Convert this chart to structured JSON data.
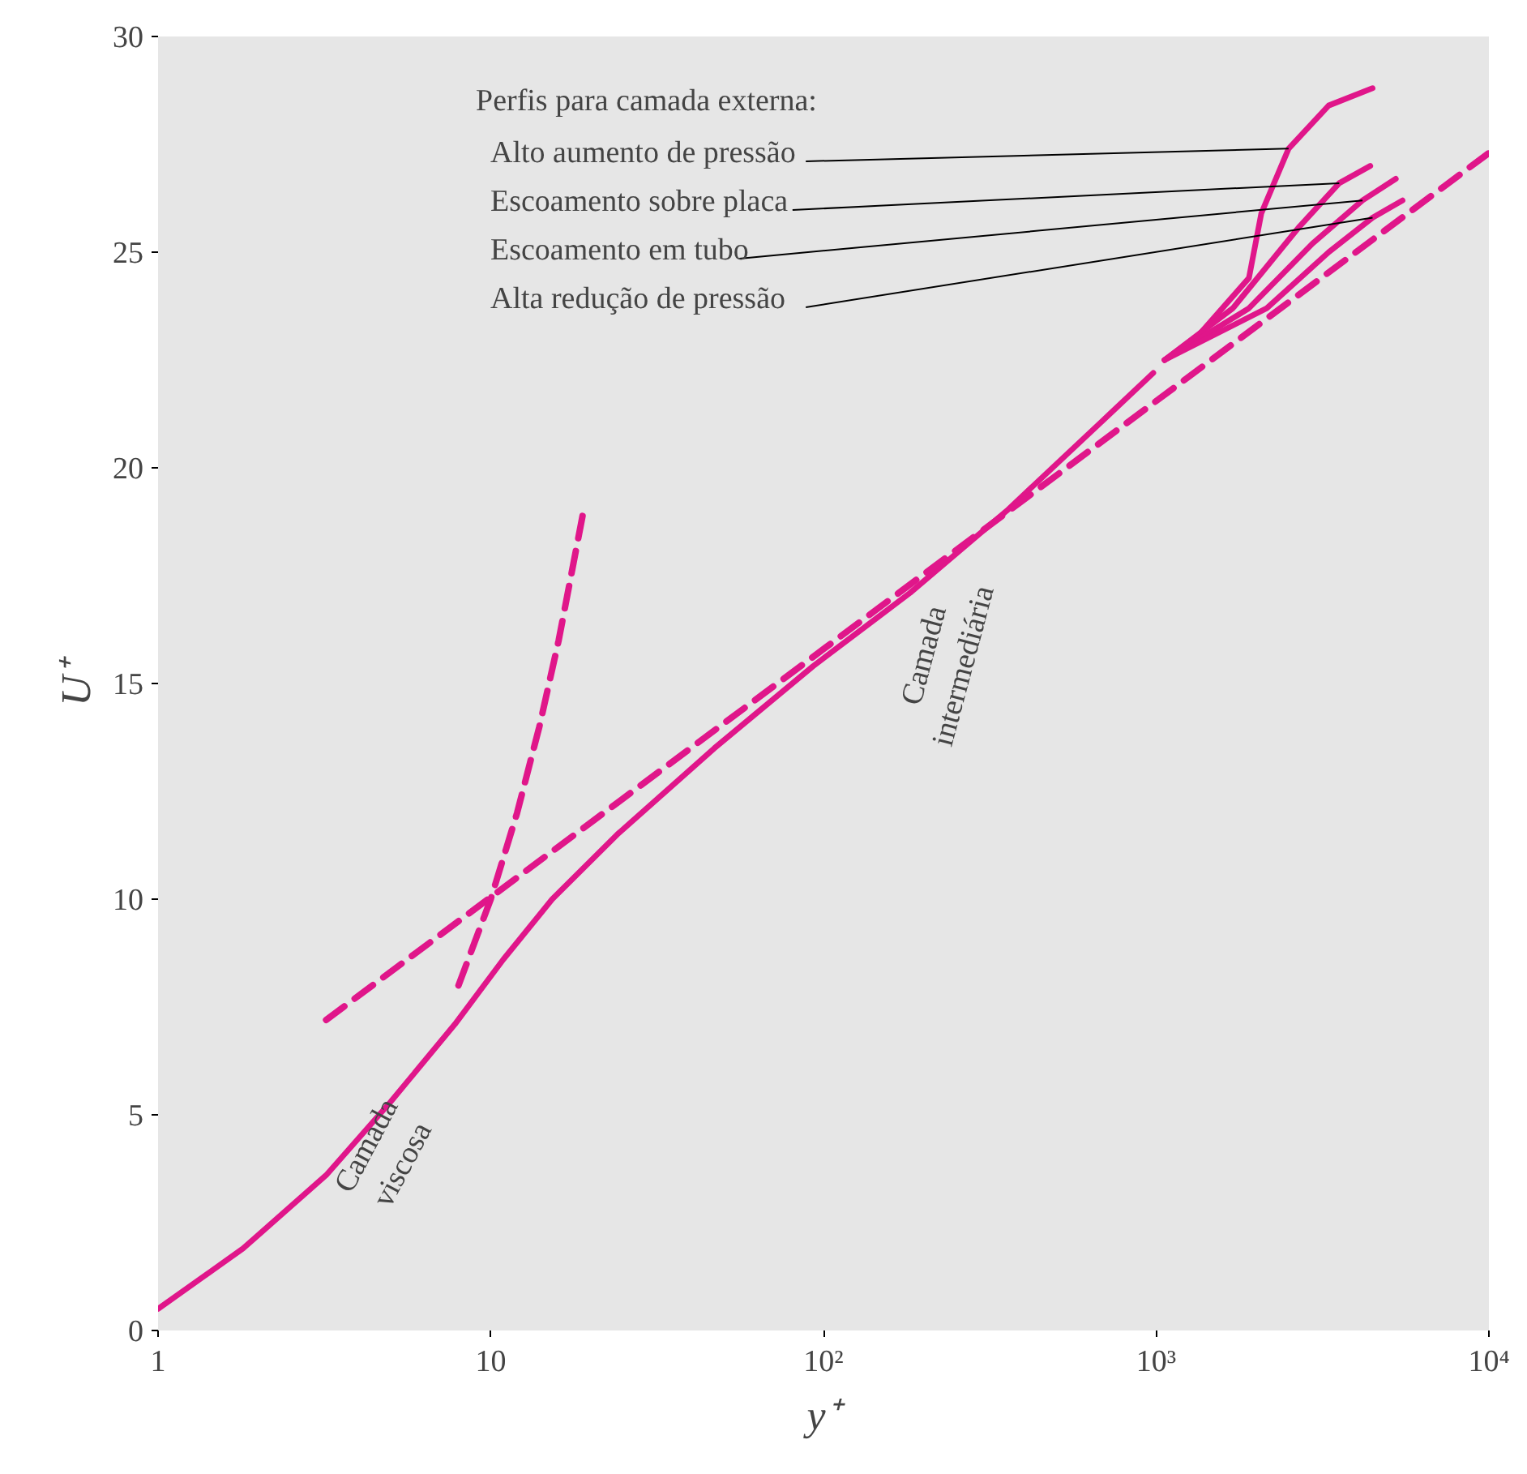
{
  "chart_data": {
    "type": "line",
    "xlabel": "y⁺",
    "ylabel": "U⁺",
    "log": "x",
    "marker": "none",
    "xlim": [
      1,
      10000
    ],
    "ylim": [
      0,
      30
    ],
    "xticks": [
      1,
      10,
      {
        "value": 100,
        "label": "10²"
      },
      {
        "value": 1000,
        "label": "10³"
      },
      {
        "value": 10000,
        "label": "10⁴"
      }
    ],
    "yticks": [
      0,
      5,
      10,
      15,
      20,
      25,
      30
    ],
    "annotations": [
      "Perfis para camada externa:",
      "Camada\nviscosa",
      "Camada\nintermediária"
    ],
    "series": [
      {
        "color": "#e0168a",
        "line_style": "solid",
        "x": [
          1,
          1.8,
          3.2,
          5,
          7.8,
          10.9,
          15.3,
          24,
          47,
          93,
          182,
          355,
          692,
          980
        ],
        "values": [
          0.5,
          1.9,
          3.6,
          5.3,
          7.1,
          8.6,
          10.0,
          11.5,
          13.5,
          15.4,
          17.1,
          19.0,
          21.1,
          22.2
        ]
      },
      {
        "name": "Alto aumento de pressão",
        "color": "#e0168a",
        "line_style": "solid",
        "x": [
          1060,
          1350,
          1900,
          2070,
          2500,
          3300,
          4470
        ],
        "values": [
          22.5,
          23.1,
          24.4,
          25.9,
          27.4,
          28.4,
          28.8
        ]
      },
      {
        "name": "Escoamento sobre placa",
        "color": "#e0168a",
        "line_style": "solid",
        "x": [
          1060,
          1700,
          2700,
          3550,
          4400
        ],
        "values": [
          22.5,
          23.7,
          25.6,
          26.6,
          27.0
        ]
      },
      {
        "name": "Escoamento em tubo",
        "color": "#e0168a",
        "line_style": "solid",
        "x": [
          1060,
          1900,
          2950,
          4170,
          5250
        ],
        "values": [
          22.5,
          23.7,
          25.2,
          26.2,
          26.7
        ]
      },
      {
        "name": "Alta redução de pressão",
        "color": "#e0168a",
        "line_style": "solid",
        "x": [
          1060,
          2150,
          3300,
          4470,
          5500
        ],
        "values": [
          22.5,
          23.7,
          25.0,
          25.8,
          26.2
        ]
      },
      {
        "color": "#e0168a",
        "line_style": "dashed",
        "x": [
          3.2,
          10000
        ],
        "values": [
          7.2,
          27.3
        ]
      },
      {
        "color": "#e0168a",
        "line_style": "dashed",
        "x": [
          8,
          10,
          12,
          14,
          16,
          19
        ],
        "values": [
          8,
          10,
          12,
          14,
          16,
          19
        ]
      }
    ]
  }
}
